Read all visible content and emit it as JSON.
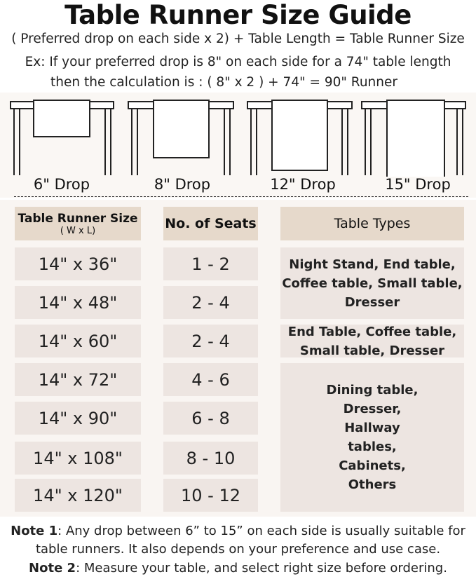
{
  "title": "Table Runner Size Guide",
  "formula": "( Preferred drop on each side x 2) + Table Length = Table Runner Size",
  "example_1": "Ex: If your preferred drop is 8\" on each side for a 74\" table length",
  "example_2": "then the calculation is : ( 8\" x 2 ) + 74\" = 90\" Runner",
  "drops": [
    "6\" Drop",
    "8\" Drop",
    "12\" Drop",
    "15\" Drop"
  ],
  "table": {
    "headers": {
      "size": "Table Runner Size",
      "size_sub": "( W x L)",
      "seats": "No. of Seats",
      "types": "Table Types"
    },
    "rows": [
      {
        "size": "14\" x 36\"",
        "seats": "1 - 2"
      },
      {
        "size": "14\" x 48\"",
        "seats": "2 - 4"
      },
      {
        "size": "14\" x 60\"",
        "seats": "2 - 4"
      },
      {
        "size": "14\" x 72\"",
        "seats": "4 - 6"
      },
      {
        "size": "14\" x 90\"",
        "seats": "6 - 8"
      },
      {
        "size": "14\" x 108\"",
        "seats": "8 - 10"
      },
      {
        "size": "14\" x 120\"",
        "seats": "10 - 12"
      }
    ],
    "types": [
      "Night Stand, End table, Coffee table, Small table, Dresser",
      "End Table, Coffee table, Small table, Dresser",
      "Dining table, Dresser, Hallway tables, Cabinets, Others"
    ]
  },
  "notes": {
    "note1_label": "Note 1",
    "note1_text": ": Any drop between 6” to 15” on each side is usually suitable for",
    "note1_text2": "table runners. It also depends on your preference and use case.",
    "note2_label": "Note 2",
    "note2_text": ": Measure your table, and select right size before ordering."
  },
  "colors": {
    "header_cell": "#e6d9cb",
    "body_cell": "#ede5e1",
    "background": "#f9f5f2"
  }
}
